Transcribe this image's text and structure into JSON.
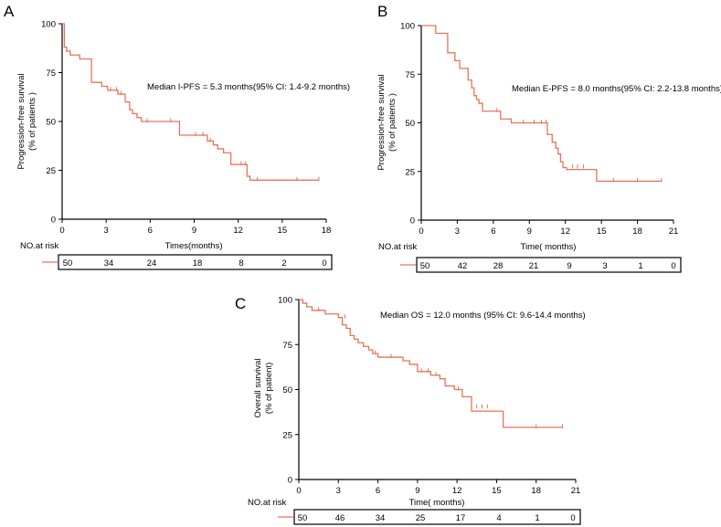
{
  "colors": {
    "curve": "#E8735A",
    "axis": "#000000"
  },
  "chart_data": [
    {
      "type": "line",
      "panel": "A",
      "title": "",
      "xlabel": "Times(months)",
      "ylabel_lines": [
        "Progression-free survival",
        "(% of patients )"
      ],
      "annotation": "Median I-PFS = 5.3 months(95% CI: 1.4-9.2 months)",
      "xlim": [
        0,
        18
      ],
      "ylim": [
        0,
        100
      ],
      "xticks": [
        0,
        3,
        6,
        9,
        12,
        15,
        18
      ],
      "yticks": [
        0,
        25,
        50,
        75,
        100
      ],
      "series": [
        {
          "name": "I-PFS",
          "x": [
            0,
            0.15,
            0.3,
            0.55,
            0.9,
            1.2,
            2.0,
            2.7,
            3.1,
            3.8,
            4.3,
            4.6,
            4.8,
            5.1,
            5.4,
            8.0,
            9.9,
            10.3,
            10.6,
            11.0,
            11.5,
            12.6,
            12.8,
            17.5
          ],
          "y": [
            100,
            88,
            86,
            84,
            84,
            82,
            70,
            68,
            66,
            64,
            60,
            56,
            54,
            52,
            50,
            43,
            40,
            38,
            36,
            34,
            28,
            22,
            20,
            20
          ]
        }
      ],
      "censor_marks": {
        "x": [
          3.3,
          3.7,
          4.0,
          5.8,
          7.4,
          9.1,
          9.6,
          10.1,
          12.2,
          12.5,
          13.3,
          16.0,
          17.5
        ],
        "y": [
          66,
          66,
          64,
          50,
          50,
          43,
          43,
          40,
          28,
          28,
          20,
          20,
          20
        ]
      },
      "risk_table": {
        "label": "NO.at risk",
        "values": [
          "50",
          "34",
          "24",
          "18",
          "8",
          "2",
          "0"
        ]
      }
    },
    {
      "type": "line",
      "panel": "B",
      "title": "",
      "xlabel": "Time( months)",
      "ylabel_lines": [
        "Progression-free survival",
        "(% of patients )"
      ],
      "annotation": "Median E-PFS = 8.0 months(95% CI: 2.2-13.8 months)",
      "xlim": [
        0,
        21
      ],
      "ylim": [
        0,
        100
      ],
      "xticks": [
        0,
        3,
        6,
        9,
        12,
        15,
        18,
        21
      ],
      "yticks": [
        0,
        25,
        50,
        75,
        100
      ],
      "series": [
        {
          "name": "E-PFS",
          "x": [
            0,
            1.2,
            2.2,
            2.8,
            3.2,
            3.9,
            4.2,
            4.4,
            4.6,
            4.8,
            5.1,
            5.4,
            6.6,
            7.5,
            10.5,
            10.9,
            11.2,
            11.4,
            11.6,
            11.8,
            12.1,
            14.6,
            20.0
          ],
          "y": [
            100,
            96,
            86,
            82,
            78,
            72,
            68,
            64,
            62,
            60,
            56,
            56,
            52,
            50,
            44,
            40,
            37,
            34,
            30,
            27,
            26,
            20,
            20
          ]
        }
      ],
      "censor_marks": {
        "x": [
          6.3,
          8.5,
          9.4,
          10.0,
          10.4,
          12.6,
          13.0,
          13.5,
          16.0,
          18.0,
          20.0
        ],
        "y": [
          56,
          50,
          50,
          50,
          50,
          27,
          27,
          27,
          20,
          20,
          20
        ]
      },
      "risk_table": {
        "label": "NO.at risk",
        "values": [
          "50",
          "42",
          "28",
          "21",
          "9",
          "3",
          "1",
          "0"
        ]
      }
    },
    {
      "type": "line",
      "panel": "C",
      "title": "",
      "xlabel": "Time( months)",
      "ylabel_lines": [
        "Overall survival",
        "(% of patient)"
      ],
      "annotation": "Median OS = 12.0 months (95% CI: 9.6-14.4 months)",
      "xlim": [
        0,
        21
      ],
      "ylim": [
        0,
        100
      ],
      "xticks": [
        0,
        3,
        6,
        9,
        12,
        15,
        18,
        21
      ],
      "yticks": [
        0,
        25,
        50,
        75,
        100
      ],
      "series": [
        {
          "name": "OS",
          "x": [
            0,
            0.3,
            0.6,
            1.0,
            2.0,
            3.0,
            3.3,
            3.6,
            3.9,
            4.2,
            4.5,
            4.9,
            5.3,
            5.6,
            6.0,
            6.5,
            7.9,
            8.4,
            9.0,
            10.0,
            10.7,
            11.1,
            11.8,
            12.4,
            13.1,
            15.5,
            20.0
          ],
          "y": [
            100,
            98,
            96,
            94,
            92,
            90,
            86,
            84,
            80,
            78,
            76,
            74,
            72,
            70,
            68,
            68,
            66,
            64,
            60,
            58,
            56,
            52,
            50,
            46,
            38,
            29,
            29
          ]
        }
      ],
      "censor_marks": {
        "x": [
          1.5,
          3.5,
          5.8,
          7.0,
          9.3,
          9.8,
          10.4,
          12.1,
          13.5,
          13.9,
          14.3,
          18.0,
          20.0
        ],
        "y": [
          94,
          90,
          70,
          68,
          60,
          60,
          58,
          50,
          40,
          40,
          40,
          29,
          29
        ]
      },
      "risk_table": {
        "label": "NO.at risk",
        "values": [
          "50",
          "46",
          "34",
          "25",
          "17",
          "4",
          "1",
          "0"
        ]
      }
    }
  ]
}
